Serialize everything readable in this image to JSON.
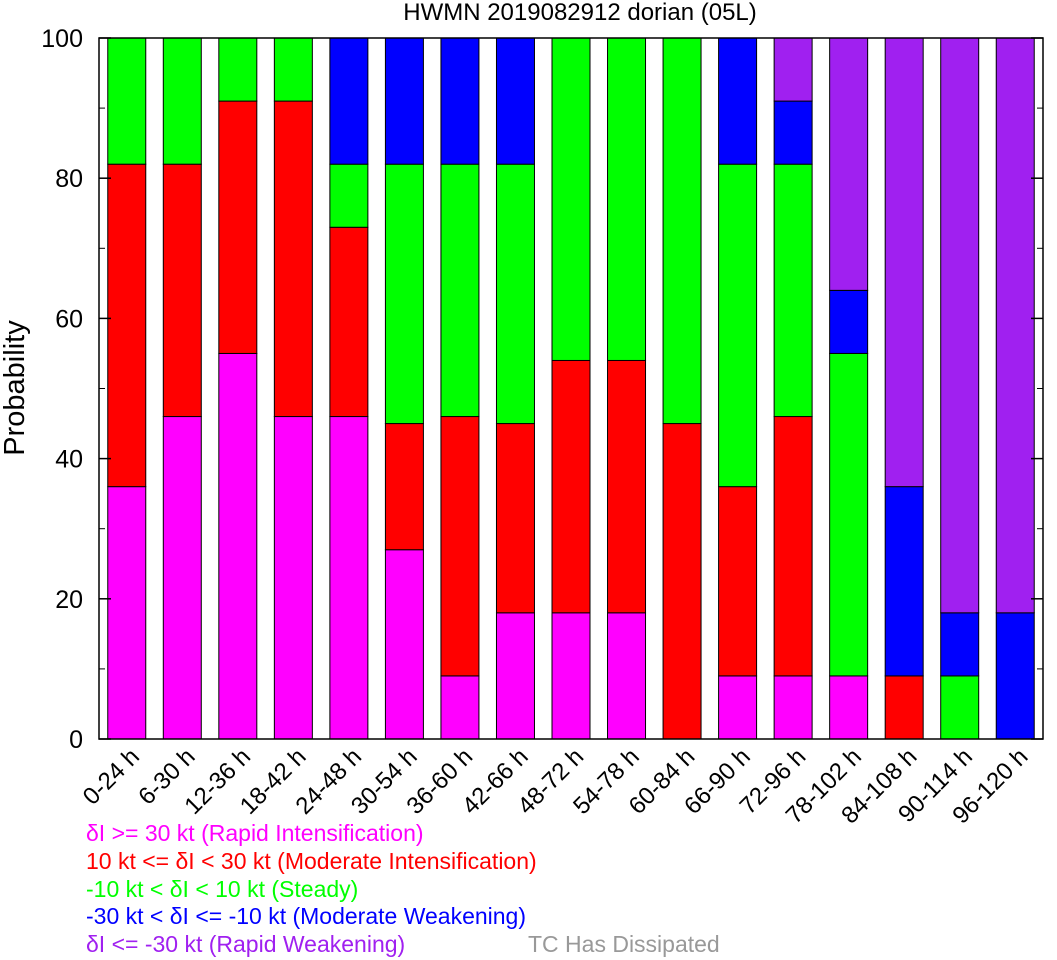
{
  "chart_data": {
    "type": "bar",
    "stacked": true,
    "title": "HWMN 2019082912 dorian (05L)",
    "xlabel": "",
    "ylabel": "Probability",
    "ylim": [
      0,
      100
    ],
    "yticks": [
      0,
      20,
      40,
      60,
      80,
      100
    ],
    "grid": false,
    "legend_position": "bottom",
    "categories": [
      "0-24 h",
      "6-30 h",
      "12-36 h",
      "18-42 h",
      "24-48 h",
      "30-54 h",
      "36-60 h",
      "42-66 h",
      "48-72 h",
      "54-78 h",
      "60-84 h",
      "66-90 h",
      "72-96 h",
      "78-102 h",
      "84-108 h",
      "90-114 h",
      "96-120 h"
    ],
    "series": [
      {
        "key": "ri",
        "name": "δI >= 30 kt (Rapid Intensification)",
        "color": "#ff00ff",
        "values": [
          36,
          46,
          55,
          46,
          46,
          27,
          9,
          18,
          18,
          18,
          0,
          9,
          9,
          9,
          0,
          0,
          0
        ]
      },
      {
        "key": "mi",
        "name": "10 kt <= δI < 30 kt (Moderate Intensification)",
        "color": "#ff0000",
        "values": [
          46,
          36,
          36,
          45,
          27,
          18,
          37,
          27,
          36,
          36,
          45,
          27,
          37,
          0,
          9,
          0,
          0
        ]
      },
      {
        "key": "st",
        "name": "-10 kt < δI < 10 kt (Steady)",
        "color": "#00ff00",
        "values": [
          18,
          18,
          9,
          9,
          9,
          37,
          36,
          37,
          46,
          46,
          55,
          46,
          36,
          46,
          0,
          9,
          0
        ]
      },
      {
        "key": "mw",
        "name": "-30 kt < δI <= -10 kt (Moderate Weakening)",
        "color": "#0000ff",
        "values": [
          0,
          0,
          0,
          0,
          18,
          18,
          18,
          18,
          0,
          0,
          0,
          18,
          9,
          9,
          27,
          9,
          18
        ]
      },
      {
        "key": "rw",
        "name": "δI <= -30 kt (Rapid Weakening)",
        "color": "#a020f0",
        "values": [
          0,
          0,
          0,
          0,
          0,
          0,
          0,
          0,
          0,
          0,
          0,
          0,
          9,
          36,
          64,
          82,
          82
        ]
      },
      {
        "key": "ds",
        "name": "TC Has Dissipated",
        "color": "#999999",
        "values": [
          0,
          0,
          0,
          0,
          0,
          0,
          0,
          0,
          0,
          0,
          0,
          0,
          0,
          0,
          0,
          0,
          0
        ]
      }
    ]
  }
}
